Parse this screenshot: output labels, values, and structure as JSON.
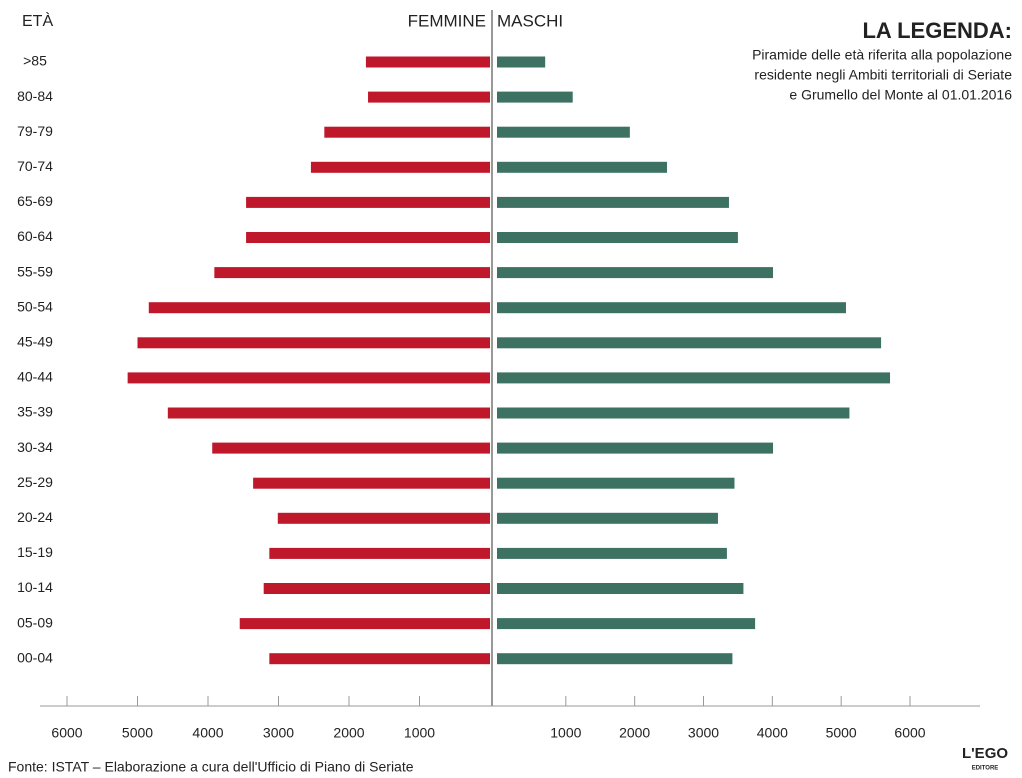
{
  "chart_data": {
    "type": "pyramid",
    "title": "LA LEGENDA:",
    "subtitle": [
      "Piramide delle età riferita alla popolazione",
      "residente negli Ambiti territoriali di Seriate",
      "e Grumello del Monte al 01.01.2016"
    ],
    "y_label": "ETÀ",
    "categories": [
      ">85",
      "80-84",
      "79-79",
      "70-74",
      "65-69",
      "60-64",
      "55-59",
      "50-54",
      "45-49",
      "40-44",
      "35-39",
      "30-34",
      "25-29",
      "20-24",
      "15-19",
      "10-14",
      "05-09",
      "00-04"
    ],
    "series": [
      {
        "name": "FEMMINE",
        "color": "#c0182b",
        "side": "left",
        "values": [
          1760,
          1730,
          2350,
          2540,
          3460,
          3460,
          3910,
          4840,
          5000,
          5140,
          4570,
          3940,
          3360,
          3010,
          3130,
          3210,
          3550,
          3130
        ]
      },
      {
        "name": "MASCHI",
        "color": "#3d7262",
        "side": "right",
        "values": [
          700,
          1100,
          1930,
          2470,
          3370,
          3500,
          4010,
          5070,
          5580,
          5710,
          5120,
          4010,
          3450,
          3210,
          3340,
          3580,
          3750,
          3420
        ]
      }
    ],
    "xlim": [
      0,
      6000
    ],
    "xticks": [
      1000,
      2000,
      3000,
      4000,
      5000,
      6000
    ],
    "source": "Fonte: ISTAT – Elaborazione a cura dell'Ufficio di Piano di Seriate",
    "publisher": [
      "L'EGO",
      "EDITORE"
    ]
  }
}
